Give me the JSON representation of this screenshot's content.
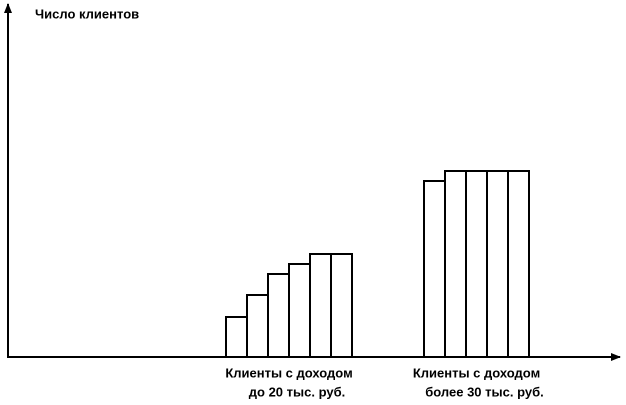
{
  "chart_data": {
    "type": "grouped_bar",
    "y_label": "Число клиентов",
    "groups": [
      {
        "label_lines": [
          "Клиенты с доходом",
          "до 20 тыс. руб."
        ],
        "values": [
          40,
          62,
          83,
          93,
          103,
          103
        ]
      },
      {
        "label_lines": [
          "Клиенты с доходом",
          "более 30 тыс. руб."
        ],
        "values": [
          176,
          186,
          186,
          186,
          186
        ]
      }
    ],
    "color": "#ffffff",
    "ylim": [
      0,
      352
    ]
  }
}
